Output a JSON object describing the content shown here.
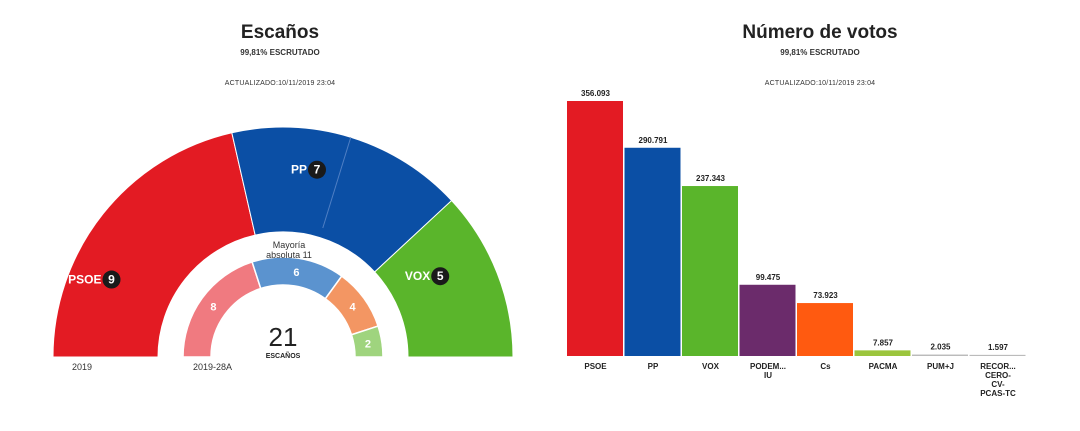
{
  "seats": {
    "title": "Escaños",
    "subtitle": "99,81% ESCRUTADO",
    "updated": "ACTUALIZADO:10/11/2019 23:04",
    "majority_label": "Mayoría absoluta 11",
    "total": "21",
    "total_label": "ESCAÑOS",
    "year_label": "2019",
    "prev_label": "2019-28A",
    "parties": [
      {
        "name": "PSOE",
        "seats": 9,
        "color": "#e31b23"
      },
      {
        "name": "PP",
        "seats": 7,
        "color": "#0b4fa5"
      },
      {
        "name": "VOX",
        "seats": 5,
        "color": "#5ab52b"
      }
    ],
    "previous": [
      {
        "seats": 8,
        "color": "#f07a80"
      },
      {
        "seats": 6,
        "color": "#5b93cf"
      },
      {
        "seats": 4,
        "color": "#f39663"
      },
      {
        "seats": 2,
        "color": "#9fd47e"
      }
    ]
  },
  "votes": {
    "title": "Número de votos",
    "subtitle": "99,81% ESCRUTADO",
    "updated": "ACTUALIZADO:10/11/2019 23:04"
  },
  "chart_data": [
    {
      "type": "pie",
      "title": "Escaños",
      "categories": [
        "PSOE",
        "PP",
        "VOX"
      ],
      "values": [
        9,
        7,
        5
      ]
    },
    {
      "type": "bar",
      "title": "Número de votos",
      "categories": [
        "PSOE",
        "PP",
        "VOX",
        "PODEM... IU",
        "Cs",
        "PACMA",
        "PUM+J",
        "RECOR... CERO-CV-PCAS-TC"
      ],
      "values": [
        356093,
        290791,
        237343,
        99475,
        73923,
        7857,
        2035,
        1597
      ],
      "value_labels": [
        "356.093",
        "290.791",
        "237.343",
        "99.475",
        "73.923",
        "7.857",
        "2.035",
        "1.597"
      ],
      "colors": [
        "#e31b23",
        "#0b4fa5",
        "#5ab52b",
        "#6b2b6b",
        "#ff5a10",
        "#9bc53d",
        "#bbbbbb",
        "#bbbbbb"
      ],
      "ylim": [
        0,
        356093
      ]
    }
  ]
}
